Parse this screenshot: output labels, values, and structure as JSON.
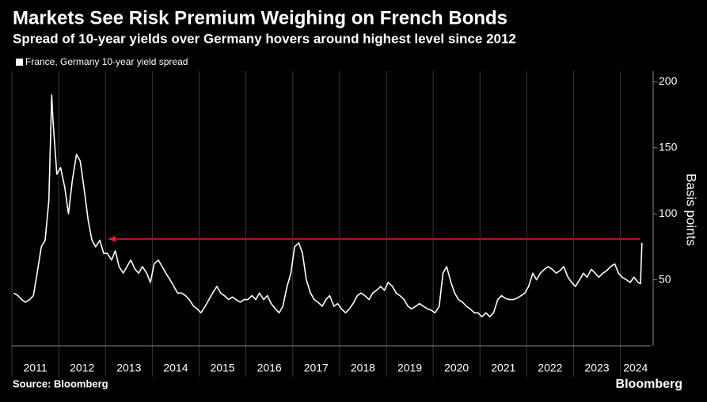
{
  "chart_data": {
    "type": "line",
    "title": "Markets See Risk Premium Weighing on French Bonds",
    "subtitle": "Spread of 10-year yields over Germany hovers around highest level since 2012",
    "y_label": "Basis points",
    "source": "Source: Bloomberg",
    "brand": "Bloomberg",
    "xlim": [
      2011,
      2024.65
    ],
    "xticks": [
      2011,
      2012,
      2013,
      2014,
      2015,
      2016,
      2017,
      2018,
      2019,
      2020,
      2021,
      2022,
      2023,
      2024
    ],
    "ylim": [
      0,
      208
    ],
    "yticks": [
      50,
      100,
      150,
      200
    ],
    "series": [
      {
        "name": "France, Germany 10-year yield spread",
        "color": "#ffffff",
        "x": [
          2011.04,
          2011.13,
          2011.21,
          2011.29,
          2011.38,
          2011.46,
          2011.54,
          2011.63,
          2011.71,
          2011.79,
          2011.85,
          2011.88,
          2011.96,
          2012.04,
          2012.13,
          2012.21,
          2012.29,
          2012.38,
          2012.46,
          2012.54,
          2012.63,
          2012.71,
          2012.79,
          2012.88,
          2012.96,
          2013.04,
          2013.13,
          2013.21,
          2013.29,
          2013.38,
          2013.46,
          2013.54,
          2013.63,
          2013.71,
          2013.79,
          2013.88,
          2013.96,
          2014.04,
          2014.13,
          2014.21,
          2014.29,
          2014.38,
          2014.46,
          2014.54,
          2014.63,
          2014.71,
          2014.79,
          2014.88,
          2014.96,
          2015.04,
          2015.13,
          2015.21,
          2015.29,
          2015.38,
          2015.46,
          2015.54,
          2015.63,
          2015.71,
          2015.79,
          2015.88,
          2015.96,
          2016.04,
          2016.13,
          2016.21,
          2016.29,
          2016.38,
          2016.46,
          2016.54,
          2016.63,
          2016.71,
          2016.79,
          2016.88,
          2016.96,
          2017.04,
          2017.13,
          2017.21,
          2017.29,
          2017.38,
          2017.46,
          2017.54,
          2017.63,
          2017.71,
          2017.79,
          2017.88,
          2017.96,
          2018.04,
          2018.13,
          2018.21,
          2018.29,
          2018.38,
          2018.46,
          2018.54,
          2018.63,
          2018.71,
          2018.79,
          2018.88,
          2018.96,
          2019.04,
          2019.13,
          2019.21,
          2019.29,
          2019.38,
          2019.46,
          2019.54,
          2019.63,
          2019.71,
          2019.79,
          2019.88,
          2019.96,
          2020.04,
          2020.13,
          2020.21,
          2020.29,
          2020.38,
          2020.46,
          2020.54,
          2020.63,
          2020.71,
          2020.79,
          2020.88,
          2020.96,
          2021.04,
          2021.13,
          2021.21,
          2021.29,
          2021.38,
          2021.46,
          2021.54,
          2021.63,
          2021.71,
          2021.79,
          2021.88,
          2021.96,
          2022.04,
          2022.13,
          2022.21,
          2022.29,
          2022.38,
          2022.46,
          2022.54,
          2022.63,
          2022.71,
          2022.79,
          2022.88,
          2022.96,
          2023.04,
          2023.13,
          2023.21,
          2023.29,
          2023.38,
          2023.46,
          2023.54,
          2023.63,
          2023.71,
          2023.79,
          2023.88,
          2023.96,
          2024.04,
          2024.13,
          2024.21,
          2024.29,
          2024.38,
          2024.43,
          2024.46
        ],
        "values": [
          40,
          38,
          35,
          33,
          35,
          38,
          55,
          75,
          80,
          110,
          190,
          170,
          130,
          135,
          120,
          100,
          125,
          145,
          140,
          120,
          95,
          80,
          75,
          80,
          70,
          70,
          65,
          72,
          60,
          55,
          60,
          65,
          58,
          55,
          60,
          55,
          48,
          62,
          65,
          60,
          55,
          50,
          45,
          40,
          40,
          38,
          35,
          30,
          28,
          25,
          30,
          35,
          40,
          45,
          40,
          38,
          35,
          37,
          35,
          33,
          35,
          35,
          38,
          35,
          40,
          35,
          38,
          32,
          28,
          25,
          30,
          45,
          55,
          75,
          78,
          70,
          50,
          40,
          35,
          33,
          30,
          35,
          38,
          30,
          32,
          28,
          25,
          28,
          32,
          38,
          40,
          38,
          35,
          40,
          42,
          45,
          42,
          48,
          45,
          40,
          38,
          35,
          30,
          28,
          30,
          32,
          30,
          28,
          27,
          25,
          30,
          55,
          60,
          48,
          40,
          35,
          33,
          30,
          28,
          25,
          25,
          22,
          25,
          22,
          25,
          35,
          38,
          36,
          35,
          35,
          36,
          38,
          40,
          45,
          55,
          50,
          55,
          58,
          60,
          58,
          55,
          57,
          60,
          52,
          48,
          45,
          50,
          55,
          52,
          58,
          55,
          52,
          55,
          57,
          60,
          62,
          55,
          52,
          50,
          48,
          52,
          48,
          47,
          78
        ]
      }
    ]
  }
}
